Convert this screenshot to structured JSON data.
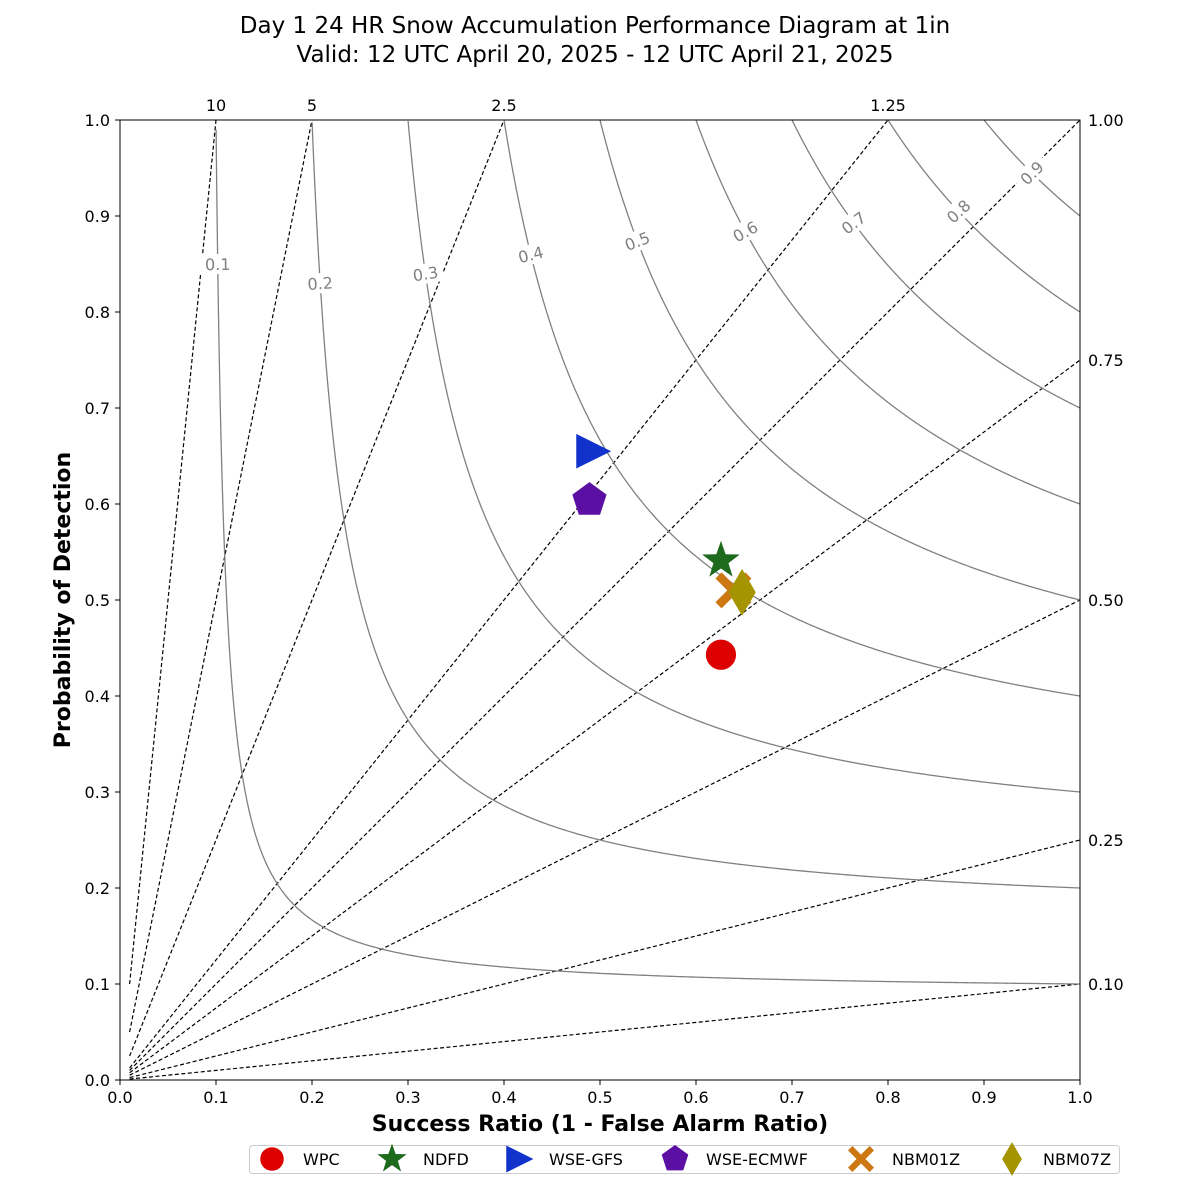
{
  "title": {
    "line1": "Day 1 24 HR Snow Accumulation Performance Diagram at 1in",
    "line2": "Valid: 12 UTC April 20, 2025 - 12 UTC April 21, 2025"
  },
  "chart_data": {
    "type": "scatter",
    "subtype": "performance-diagram",
    "xlabel": "Success Ratio (1 - False Alarm Ratio)",
    "ylabel": "Probability of Detection",
    "xlim": [
      0,
      1
    ],
    "ylim": [
      0,
      1
    ],
    "x_ticks": [
      "0.0",
      "0.1",
      "0.2",
      "0.3",
      "0.4",
      "0.5",
      "0.6",
      "0.7",
      "0.8",
      "0.9",
      "1.0"
    ],
    "y_ticks": [
      "0.0",
      "0.1",
      "0.2",
      "0.3",
      "0.4",
      "0.5",
      "0.6",
      "0.7",
      "0.8",
      "0.9",
      "1.0"
    ],
    "grid": false,
    "csi_contours": [
      {
        "value": 0.1,
        "label": "0.1"
      },
      {
        "value": 0.2,
        "label": "0.2"
      },
      {
        "value": 0.3,
        "label": "0.3"
      },
      {
        "value": 0.4,
        "label": "0.4"
      },
      {
        "value": 0.5,
        "label": "0.5"
      },
      {
        "value": 0.6,
        "label": "0.6"
      },
      {
        "value": 0.7,
        "label": "0.7"
      },
      {
        "value": 0.8,
        "label": "0.8"
      },
      {
        "value": 0.9,
        "label": "0.9"
      }
    ],
    "bias_lines": [
      {
        "value": 10,
        "label": "10",
        "label_edge": "top"
      },
      {
        "value": 5,
        "label": "5",
        "label_edge": "top"
      },
      {
        "value": 2.5,
        "label": "2.5",
        "label_edge": "top"
      },
      {
        "value": 1.25,
        "label": "1.25",
        "label_edge": "top"
      },
      {
        "value": 1,
        "label": "1.00",
        "label_edge": "right"
      },
      {
        "value": 0.75,
        "label": "0.75",
        "label_edge": "right"
      },
      {
        "value": 0.5,
        "label": "0.50",
        "label_edge": "right"
      },
      {
        "value": 0.25,
        "label": "0.25",
        "label_edge": "right"
      },
      {
        "value": 0.1,
        "label": "0.10",
        "label_edge": "right"
      }
    ],
    "series": [
      {
        "name": "WPC",
        "x": 0.626,
        "y": 0.443,
        "color": "#dd0000",
        "marker": "circle"
      },
      {
        "name": "NDFD",
        "x": 0.626,
        "y": 0.541,
        "color": "#1e6b1e",
        "marker": "star"
      },
      {
        "name": "WSE-GFS",
        "x": 0.491,
        "y": 0.655,
        "color": "#1133cc",
        "marker": "triangle-right"
      },
      {
        "name": "WSE-ECMWF",
        "x": 0.489,
        "y": 0.604,
        "color": "#5c0fa3",
        "marker": "pentagon"
      },
      {
        "name": "NBM01Z",
        "x": 0.639,
        "y": 0.51,
        "color": "#cc7711",
        "marker": "x"
      },
      {
        "name": "NBM07Z",
        "x": 0.648,
        "y": 0.508,
        "color": "#a39400",
        "marker": "diamond"
      }
    ],
    "legend_position": "bottom"
  }
}
